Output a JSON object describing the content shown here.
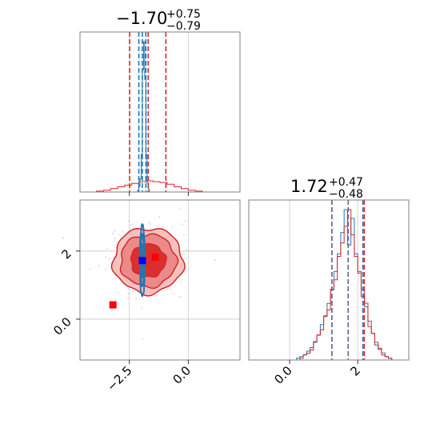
{
  "chart_data": {
    "type": "corner",
    "panels": [
      {
        "id": "hist-x",
        "type": "histogram",
        "xlim": [
          -4.6,
          2.2
        ],
        "title": {
          "value": "−1.70",
          "plus": "+0.75",
          "minus": "−0.79"
        },
        "xticks": [
          -2.5,
          0.0
        ],
        "quantiles": {
          "red": [
            -2.49,
            -1.7,
            -0.95
          ],
          "blue": [
            -2.1,
            -1.95,
            -1.8
          ]
        },
        "series": [
          {
            "name": "",
            "color": "#d62728",
            "bins": [
              -4.2,
              -3.9,
              -3.6,
              -3.3,
              -3.0,
              -2.7,
              -2.4,
              -2.1,
              -1.8,
              -1.5,
              -1.2,
              -0.9,
              -0.6,
              -0.3,
              0.0,
              0.3
            ],
            "counts": [
              0,
              1,
              2,
              4,
              6,
              8,
              10,
              12,
              13,
              12,
              11,
              9,
              6,
              4,
              2,
              1
            ]
          },
          {
            "name": "",
            "color": "#1f77b4",
            "bins": [
              -2.2,
              -2.15,
              -2.1,
              -2.05,
              -2.0,
              -1.95,
              -1.9,
              -1.85,
              -1.8,
              -1.75,
              -1.7,
              -1.65
            ],
            "counts": [
              0,
              2,
              6,
              14,
              40,
              130,
              160,
              120,
              40,
              10,
              3,
              0
            ]
          }
        ]
      },
      {
        "id": "hist-y",
        "type": "histogram",
        "xlim": [
          -1.2,
          3.5
        ],
        "title": {
          "value": "1.72",
          "plus": "+0.47",
          "minus": "−0.48"
        },
        "xticks": [
          0,
          2
        ],
        "quantiles": {
          "red": [
            1.24,
            1.72,
            2.19
          ],
          "blue": [
            1.24,
            1.72,
            2.15
          ]
        },
        "series": [
          {
            "name": "",
            "color": "#1f77b4",
            "bins": [
              0.2,
              0.3,
              0.4,
              0.5,
              0.6,
              0.7,
              0.8,
              0.9,
              1.0,
              1.1,
              1.2,
              1.3,
              1.4,
              1.5,
              1.6,
              1.7,
              1.8,
              1.9,
              2.0,
              2.1,
              2.2,
              2.3,
              2.4,
              2.5,
              2.6,
              2.7,
              2.8,
              2.9,
              3.0
            ],
            "counts": [
              1,
              2,
              3,
              5,
              7,
              10,
              14,
              20,
              25,
              32,
              40,
              50,
              60,
              72,
              85,
              65,
              80,
              60,
              50,
              40,
              30,
              22,
              15,
              10,
              6,
              4,
              2,
              1,
              0
            ]
          },
          {
            "name": "",
            "color": "#d62728",
            "bins": [
              0.2,
              0.3,
              0.4,
              0.5,
              0.6,
              0.7,
              0.8,
              0.9,
              1.0,
              1.1,
              1.2,
              1.3,
              1.4,
              1.5,
              1.6,
              1.7,
              1.8,
              1.9,
              2.0,
              2.1,
              2.2,
              2.3,
              2.4,
              2.5,
              2.6,
              2.7,
              2.8,
              2.9,
              3.0
            ],
            "counts": [
              0,
              1,
              3,
              4,
              6,
              11,
              15,
              18,
              26,
              30,
              42,
              48,
              62,
              70,
              80,
              90,
              75,
              62,
              52,
              38,
              34,
              20,
              16,
              9,
              7,
              3,
              2,
              1,
              0
            ]
          }
        ]
      },
      {
        "id": "joint",
        "type": "contour",
        "xlim": [
          -4.6,
          2.2
        ],
        "ylim": [
          -1.2,
          3.5
        ],
        "xticks": [
          -2.5,
          0.0
        ],
        "yticks": [
          0,
          2
        ],
        "red_density": {
          "center": [
            -1.7,
            1.72
          ],
          "sigma": [
            0.78,
            0.48
          ]
        },
        "blue_density": {
          "center": [
            -1.95,
            1.72
          ],
          "sigma": [
            0.08,
            0.48
          ]
        },
        "markers": [
          {
            "x": -1.95,
            "y": 1.72,
            "color": "#0000ff"
          },
          {
            "x": -1.4,
            "y": 1.82,
            "color": "#ff0000"
          },
          {
            "x": -3.2,
            "y": 0.42,
            "color": "#ff0000"
          }
        ]
      }
    ]
  }
}
